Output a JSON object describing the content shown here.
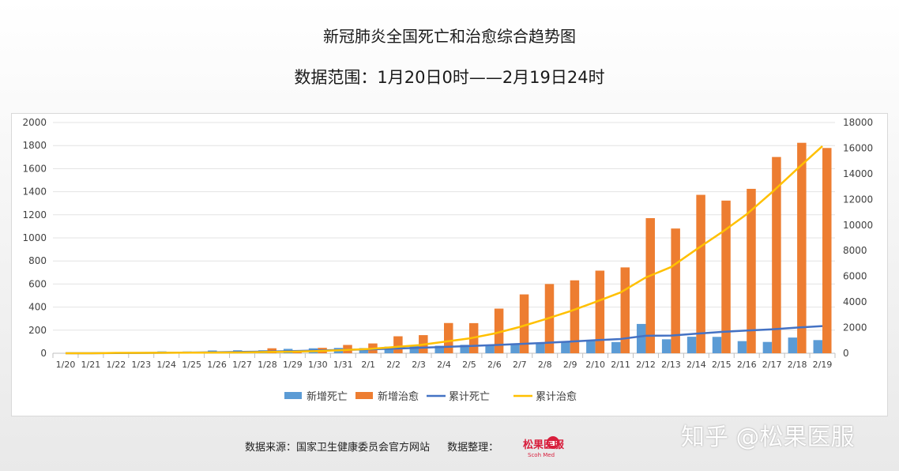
{
  "title": "新冠肺炎全国死亡和治愈综合趋势图",
  "subtitle": "数据范围：1月20日0时——2月19日24时",
  "footer": {
    "source": "数据来源：国家卫生健康委员会官方网站",
    "organizer": "数据整理："
  },
  "logo": {
    "text": "松果医服",
    "sub": "Scoh Med"
  },
  "watermark": "知乎 @松果医服",
  "colors": {
    "new_deaths": "#5b9bd5",
    "new_cured": "#ed7d31",
    "cum_deaths": "#4472c4",
    "cum_cured": "#ffc000"
  },
  "chart_data": {
    "type": "bar",
    "categories": [
      "1/20",
      "1/21",
      "1/22",
      "1/23",
      "1/24",
      "1/25",
      "1/26",
      "1/27",
      "1/28",
      "1/29",
      "1/30",
      "1/31",
      "2/1",
      "2/2",
      "2/3",
      "2/4",
      "2/5",
      "2/6",
      "2/7",
      "2/8",
      "2/9",
      "2/10",
      "2/11",
      "2/12",
      "2/13",
      "2/14",
      "2/15",
      "2/16",
      "2/17",
      "2/18",
      "2/19"
    ],
    "ylim_left": [
      0,
      2000
    ],
    "ylim_right": [
      0,
      18000
    ],
    "yticks_left": [
      "0",
      "200",
      "400",
      "600",
      "800",
      "1000",
      "1200",
      "1400",
      "1600",
      "1800",
      "2000"
    ],
    "yticks_right": [
      "0",
      "2000",
      "4000",
      "6000",
      "8000",
      "10000",
      "12000",
      "14000",
      "16000",
      "18000"
    ],
    "series": [
      {
        "name": "新增死亡",
        "type": "bar",
        "axis": "left",
        "values": [
          0,
          3,
          8,
          8,
          16,
          15,
          24,
          26,
          26,
          38,
          43,
          46,
          45,
          57,
          64,
          65,
          73,
          73,
          86,
          89,
          97,
          108,
          97,
          254,
          121,
          143,
          142,
          105,
          98,
          136,
          114
        ]
      },
      {
        "name": "新增治愈",
        "type": "bar",
        "axis": "left",
        "values": [
          0,
          0,
          6,
          6,
          3,
          11,
          9,
          2,
          43,
          21,
          47,
          72,
          85,
          147,
          157,
          262,
          261,
          387,
          510,
          600,
          632,
          716,
          744,
          1171,
          1081,
          1373,
          1323,
          1425,
          1701,
          1824,
          1779
        ]
      },
      {
        "name": "累计死亡",
        "type": "line",
        "axis": "right",
        "values": [
          0,
          3,
          17,
          25,
          41,
          56,
          80,
          106,
          132,
          170,
          213,
          259,
          304,
          361,
          425,
          490,
          563,
          636,
          722,
          811,
          908,
          1016,
          1113,
          1367,
          1380,
          1523,
          1665,
          1770,
          1868,
          2004,
          2118
        ]
      },
      {
        "name": "累计治愈",
        "type": "line",
        "axis": "right",
        "values": [
          0,
          0,
          28,
          34,
          38,
          49,
          51,
          60,
          103,
          124,
          171,
          243,
          328,
          475,
          632,
          892,
          1153,
          1540,
          2050,
          2649,
          3281,
          3996,
          4740,
          5911,
          6723,
          8096,
          9419,
          10844,
          12552,
          14376,
          16155
        ]
      }
    ],
    "legend_position": "bottom",
    "grid": true
  }
}
